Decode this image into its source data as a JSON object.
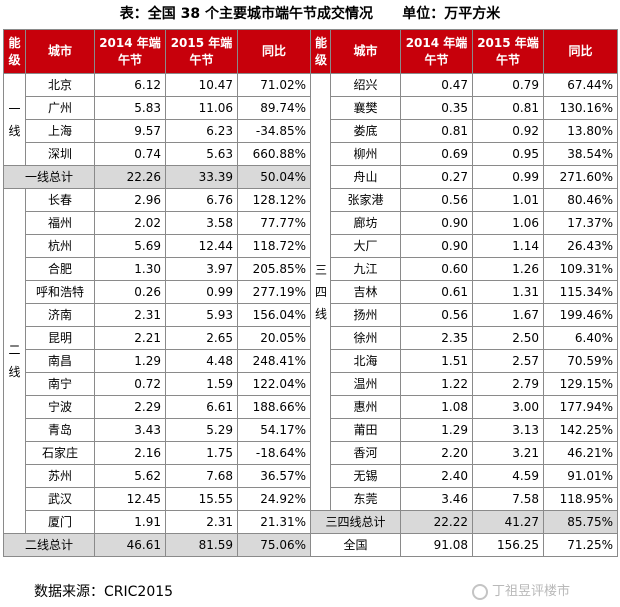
{
  "title": "表：全国 38 个主要城市端午节成交情况      单位：万平方米",
  "headers": {
    "tier": "能级",
    "city": "城市",
    "y2014": "2014 年端午节",
    "y2015": "2015 年端午节",
    "yoy": "同比"
  },
  "left": {
    "tier1_label": "一线",
    "tier1_rows": [
      {
        "city": "北京",
        "v2014": "6.12",
        "v2015": "10.47",
        "yoy": "71.02%"
      },
      {
        "city": "广州",
        "v2014": "5.83",
        "v2015": "11.06",
        "yoy": "89.74%"
      },
      {
        "city": "上海",
        "v2014": "9.57",
        "v2015": "6.23",
        "yoy": "-34.85%"
      },
      {
        "city": "深圳",
        "v2014": "0.74",
        "v2015": "5.63",
        "yoy": "660.88%"
      }
    ],
    "tier1_total": {
      "label": "一线总计",
      "v2014": "22.26",
      "v2015": "33.39",
      "yoy": "50.04%"
    },
    "tier2_label": "二线",
    "tier2_rows": [
      {
        "city": "长春",
        "v2014": "2.96",
        "v2015": "6.76",
        "yoy": "128.12%"
      },
      {
        "city": "福州",
        "v2014": "2.02",
        "v2015": "3.58",
        "yoy": "77.77%"
      },
      {
        "city": "杭州",
        "v2014": "5.69",
        "v2015": "12.44",
        "yoy": "118.72%"
      },
      {
        "city": "合肥",
        "v2014": "1.30",
        "v2015": "3.97",
        "yoy": "205.85%"
      },
      {
        "city": "呼和浩特",
        "v2014": "0.26",
        "v2015": "0.99",
        "yoy": "277.19%"
      },
      {
        "city": "济南",
        "v2014": "2.31",
        "v2015": "5.93",
        "yoy": "156.04%"
      },
      {
        "city": "昆明",
        "v2014": "2.21",
        "v2015": "2.65",
        "yoy": "20.05%"
      },
      {
        "city": "南昌",
        "v2014": "1.29",
        "v2015": "4.48",
        "yoy": "248.41%"
      },
      {
        "city": "南宁",
        "v2014": "0.72",
        "v2015": "1.59",
        "yoy": "122.04%"
      },
      {
        "city": "宁波",
        "v2014": "2.29",
        "v2015": "6.61",
        "yoy": "188.66%"
      },
      {
        "city": "青岛",
        "v2014": "3.43",
        "v2015": "5.29",
        "yoy": "54.17%"
      },
      {
        "city": "石家庄",
        "v2014": "2.16",
        "v2015": "1.75",
        "yoy": "-18.64%"
      },
      {
        "city": "苏州",
        "v2014": "5.62",
        "v2015": "7.68",
        "yoy": "36.57%"
      },
      {
        "city": "武汉",
        "v2014": "12.45",
        "v2015": "15.55",
        "yoy": "24.92%"
      },
      {
        "city": "厦门",
        "v2014": "1.91",
        "v2015": "2.31",
        "yoy": "21.31%"
      }
    ],
    "tier2_total": {
      "label": "二线总计",
      "v2014": "46.61",
      "v2015": "81.59",
      "yoy": "75.06%"
    }
  },
  "right": {
    "tier34_label": "三四线",
    "rows": [
      {
        "city": "绍兴",
        "v2014": "0.47",
        "v2015": "0.79",
        "yoy": "67.44%"
      },
      {
        "city": "襄樊",
        "v2014": "0.35",
        "v2015": "0.81",
        "yoy": "130.16%"
      },
      {
        "city": "娄底",
        "v2014": "0.81",
        "v2015": "0.92",
        "yoy": "13.80%"
      },
      {
        "city": "柳州",
        "v2014": "0.69",
        "v2015": "0.95",
        "yoy": "38.54%"
      },
      {
        "city": "舟山",
        "v2014": "0.27",
        "v2015": "0.99",
        "yoy": "271.60%"
      },
      {
        "city": "张家港",
        "v2014": "0.56",
        "v2015": "1.01",
        "yoy": "80.46%"
      },
      {
        "city": "廊坊",
        "v2014": "0.90",
        "v2015": "1.06",
        "yoy": "17.37%"
      },
      {
        "city": "大厂",
        "v2014": "0.90",
        "v2015": "1.14",
        "yoy": "26.43%"
      },
      {
        "city": "九江",
        "v2014": "0.60",
        "v2015": "1.26",
        "yoy": "109.31%"
      },
      {
        "city": "吉林",
        "v2014": "0.61",
        "v2015": "1.31",
        "yoy": "115.34%"
      },
      {
        "city": "扬州",
        "v2014": "0.56",
        "v2015": "1.67",
        "yoy": "199.46%"
      },
      {
        "city": "徐州",
        "v2014": "2.35",
        "v2015": "2.50",
        "yoy": "6.40%"
      },
      {
        "city": "北海",
        "v2014": "1.51",
        "v2015": "2.57",
        "yoy": "70.59%"
      },
      {
        "city": "温州",
        "v2014": "1.22",
        "v2015": "2.79",
        "yoy": "129.15%"
      },
      {
        "city": "惠州",
        "v2014": "1.08",
        "v2015": "3.00",
        "yoy": "177.94%"
      },
      {
        "city": "莆田",
        "v2014": "1.29",
        "v2015": "3.13",
        "yoy": "142.25%"
      },
      {
        "city": "香河",
        "v2014": "2.20",
        "v2015": "3.21",
        "yoy": "46.21%"
      },
      {
        "city": "无锡",
        "v2014": "2.40",
        "v2015": "4.59",
        "yoy": "91.01%"
      },
      {
        "city": "东莞",
        "v2014": "3.46",
        "v2015": "7.58",
        "yoy": "118.95%"
      }
    ],
    "tier34_total": {
      "label": "三四线总计",
      "v2014": "22.22",
      "v2015": "41.27",
      "yoy": "85.75%"
    },
    "national_total": {
      "label": "全国",
      "v2014": "91.08",
      "v2015": "156.25",
      "yoy": "71.25%"
    }
  },
  "source": "数据来源：CRIC2015",
  "watermark": "丁祖昱评楼市",
  "colors": {
    "header_bg": "#c7000b",
    "total_bg": "#d9d9d9"
  }
}
